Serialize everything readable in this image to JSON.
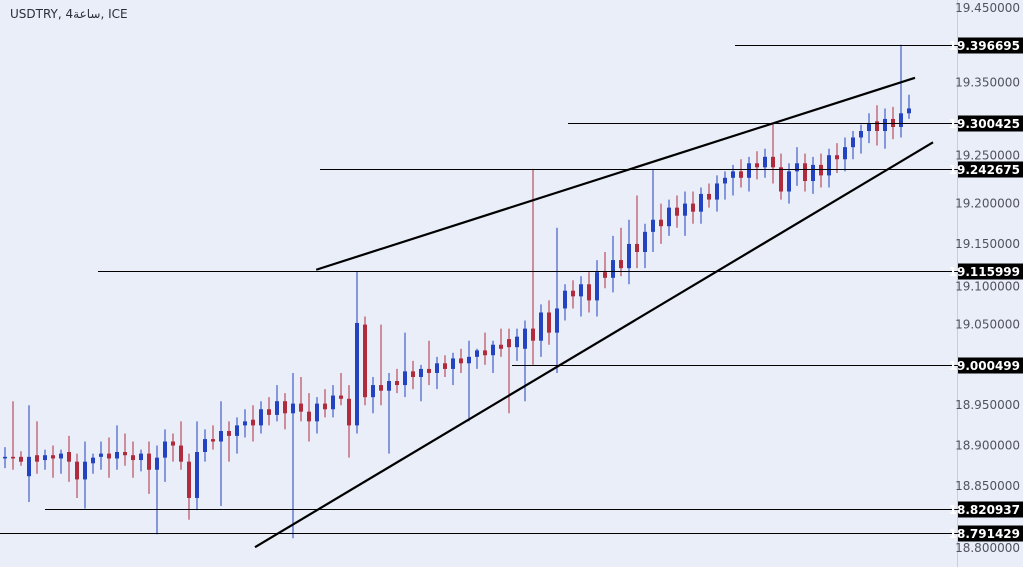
{
  "header": {
    "title": "USDTRY, 4ساعة, ICE"
  },
  "colors": {
    "background": "#e9eef8",
    "up": "#2343c0",
    "down": "#b02b3c",
    "lines": "#000000",
    "label_bg": "#000000",
    "label_text": "#ffffff",
    "tick_text": "#50535e"
  },
  "chart_data": {
    "type": "candlestick",
    "title": "USDTRY, 4ساعة, ICE",
    "y_axis": {
      "position": "right",
      "ylim": [
        18.775,
        19.45
      ],
      "ticks": [
        "19.450000",
        "19.350000",
        "19.250000",
        "19.200000",
        "19.150000",
        "19.100000",
        "19.050000",
        "18.950000",
        "18.900000",
        "18.850000",
        "18.800000"
      ]
    },
    "levels": [
      "19.396695",
      "19.300425",
      "19.242675",
      "19.115999",
      "19.000499",
      "18.820937",
      "18.791429"
    ],
    "trendlines": [
      {
        "name": "upper",
        "from": [
          38.9,
          19.118
        ],
        "to": [
          113.75,
          19.356
        ]
      },
      {
        "name": "lower",
        "from": [
          31.25,
          18.774
        ],
        "to": [
          116,
          19.276
        ]
      }
    ],
    "ohlc": [
      [
        18.884,
        18.898,
        18.872,
        18.886
      ],
      [
        18.886,
        18.955,
        18.87,
        18.884
      ],
      [
        18.886,
        18.893,
        18.875,
        18.88
      ],
      [
        18.862,
        18.95,
        18.83,
        18.886
      ],
      [
        18.888,
        18.93,
        18.865,
        18.88
      ],
      [
        18.882,
        18.895,
        18.87,
        18.888
      ],
      [
        18.888,
        18.9,
        18.86,
        18.884
      ],
      [
        18.884,
        18.895,
        18.865,
        18.89
      ],
      [
        18.892,
        18.912,
        18.855,
        18.88
      ],
      [
        18.88,
        18.89,
        18.835,
        18.858
      ],
      [
        18.858,
        18.905,
        18.822,
        18.88
      ],
      [
        18.878,
        18.89,
        18.865,
        18.885
      ],
      [
        18.886,
        18.905,
        18.87,
        18.89
      ],
      [
        18.89,
        18.91,
        18.86,
        18.884
      ],
      [
        18.884,
        18.925,
        18.87,
        18.892
      ],
      [
        18.892,
        18.915,
        18.875,
        18.888
      ],
      [
        18.888,
        18.905,
        18.86,
        18.882
      ],
      [
        18.882,
        18.895,
        18.868,
        18.89
      ],
      [
        18.89,
        18.905,
        18.84,
        18.87
      ],
      [
        18.87,
        18.9,
        18.79,
        18.885
      ],
      [
        18.885,
        18.92,
        18.855,
        18.905
      ],
      [
        18.905,
        18.915,
        18.88,
        18.9
      ],
      [
        18.9,
        18.93,
        18.87,
        18.88
      ],
      [
        18.88,
        18.89,
        18.808,
        18.835
      ],
      [
        18.835,
        18.93,
        18.82,
        18.892
      ],
      [
        18.892,
        18.92,
        18.88,
        18.908
      ],
      [
        18.908,
        18.925,
        18.895,
        18.905
      ],
      [
        18.905,
        18.955,
        18.825,
        18.918
      ],
      [
        18.918,
        18.93,
        18.88,
        18.912
      ],
      [
        18.912,
        18.935,
        18.89,
        18.925
      ],
      [
        18.925,
        18.945,
        18.91,
        18.93
      ],
      [
        18.932,
        18.95,
        18.905,
        18.925
      ],
      [
        18.925,
        18.955,
        18.915,
        18.945
      ],
      [
        18.945,
        18.96,
        18.925,
        18.938
      ],
      [
        18.938,
        18.975,
        18.93,
        18.955
      ],
      [
        18.955,
        18.965,
        18.92,
        18.94
      ],
      [
        18.94,
        18.99,
        18.785,
        18.952
      ],
      [
        18.952,
        18.985,
        18.93,
        18.942
      ],
      [
        18.942,
        18.965,
        18.905,
        18.93
      ],
      [
        18.93,
        18.96,
        18.915,
        18.952
      ],
      [
        18.952,
        18.97,
        18.935,
        18.945
      ],
      [
        18.945,
        18.975,
        18.935,
        18.962
      ],
      [
        18.962,
        18.99,
        18.95,
        18.958
      ],
      [
        18.958,
        18.975,
        18.885,
        18.925
      ],
      [
        18.925,
        19.116,
        18.915,
        19.052
      ],
      [
        19.05,
        19.06,
        18.95,
        18.96
      ],
      [
        18.96,
        18.985,
        18.94,
        18.975
      ],
      [
        18.975,
        19.05,
        18.95,
        18.968
      ],
      [
        18.968,
        18.99,
        18.89,
        18.98
      ],
      [
        18.98,
        18.995,
        18.965,
        18.975
      ],
      [
        18.975,
        19.04,
        18.96,
        18.992
      ],
      [
        18.992,
        19.005,
        18.97,
        18.985
      ],
      [
        18.985,
        19.0,
        18.955,
        18.995
      ],
      [
        18.995,
        19.03,
        18.975,
        18.99
      ],
      [
        18.99,
        19.01,
        18.97,
        19.002
      ],
      [
        19.002,
        19.012,
        18.985,
        18.995
      ],
      [
        18.995,
        19.015,
        18.975,
        19.008
      ],
      [
        19.008,
        19.02,
        18.99,
        19.002
      ],
      [
        19.002,
        19.03,
        18.93,
        19.01
      ],
      [
        19.01,
        19.02,
        18.995,
        19.018
      ],
      [
        19.018,
        19.04,
        19.0,
        19.012
      ],
      [
        19.012,
        19.03,
        18.99,
        19.025
      ],
      [
        19.025,
        19.045,
        19.01,
        19.02
      ],
      [
        19.032,
        19.045,
        18.94,
        19.022
      ],
      [
        19.022,
        19.045,
        19.005,
        19.035
      ],
      [
        19.02,
        19.055,
        18.955,
        19.045
      ],
      [
        19.045,
        19.243,
        19.0,
        19.03
      ],
      [
        19.03,
        19.075,
        19.01,
        19.065
      ],
      [
        19.065,
        19.08,
        19.025,
        19.04
      ],
      [
        19.04,
        19.17,
        18.99,
        19.07
      ],
      [
        19.07,
        19.1,
        19.055,
        19.092
      ],
      [
        19.092,
        19.105,
        19.07,
        19.085
      ],
      [
        19.085,
        19.11,
        19.06,
        19.1
      ],
      [
        19.1,
        19.115,
        19.065,
        19.08
      ],
      [
        19.08,
        19.13,
        19.06,
        19.115
      ],
      [
        19.115,
        19.14,
        19.095,
        19.108
      ],
      [
        19.108,
        19.16,
        19.09,
        19.13
      ],
      [
        19.13,
        19.17,
        19.11,
        19.12
      ],
      [
        19.12,
        19.18,
        19.1,
        19.15
      ],
      [
        19.15,
        19.21,
        19.12,
        19.14
      ],
      [
        19.14,
        19.175,
        19.12,
        19.165
      ],
      [
        19.165,
        19.243,
        19.14,
        19.18
      ],
      [
        19.18,
        19.2,
        19.15,
        19.172
      ],
      [
        19.172,
        19.205,
        19.16,
        19.195
      ],
      [
        19.195,
        19.21,
        19.17,
        19.185
      ],
      [
        19.185,
        19.215,
        19.16,
        19.2
      ],
      [
        19.2,
        19.215,
        19.175,
        19.19
      ],
      [
        19.19,
        19.22,
        19.175,
        19.212
      ],
      [
        19.212,
        19.225,
        19.195,
        19.205
      ],
      [
        19.205,
        19.235,
        19.19,
        19.225
      ],
      [
        19.225,
        19.24,
        19.205,
        19.232
      ],
      [
        19.232,
        19.248,
        19.21,
        19.24
      ],
      [
        19.24,
        19.255,
        19.22,
        19.232
      ],
      [
        19.232,
        19.258,
        19.215,
        19.25
      ],
      [
        19.25,
        19.265,
        19.23,
        19.245
      ],
      [
        19.245,
        19.268,
        19.232,
        19.258
      ],
      [
        19.258,
        19.3,
        19.225,
        19.245
      ],
      [
        19.245,
        19.262,
        19.205,
        19.215
      ],
      [
        19.215,
        19.25,
        19.2,
        19.24
      ],
      [
        19.24,
        19.27,
        19.222,
        19.25
      ],
      [
        19.25,
        19.262,
        19.215,
        19.228
      ],
      [
        19.228,
        19.258,
        19.212,
        19.248
      ],
      [
        19.248,
        19.262,
        19.22,
        19.235
      ],
      [
        19.235,
        19.268,
        19.22,
        19.26
      ],
      [
        19.26,
        19.275,
        19.238,
        19.255
      ],
      [
        19.255,
        19.282,
        19.24,
        19.27
      ],
      [
        19.27,
        19.29,
        19.255,
        19.282
      ],
      [
        19.282,
        19.298,
        19.262,
        19.29
      ],
      [
        19.29,
        19.312,
        19.275,
        19.3
      ],
      [
        19.302,
        19.322,
        19.272,
        19.29
      ],
      [
        19.29,
        19.318,
        19.268,
        19.305
      ],
      [
        19.305,
        19.32,
        19.28,
        19.295
      ],
      [
        19.295,
        19.397,
        19.282,
        19.312
      ],
      [
        19.312,
        19.335,
        19.305,
        19.318
      ]
    ]
  }
}
